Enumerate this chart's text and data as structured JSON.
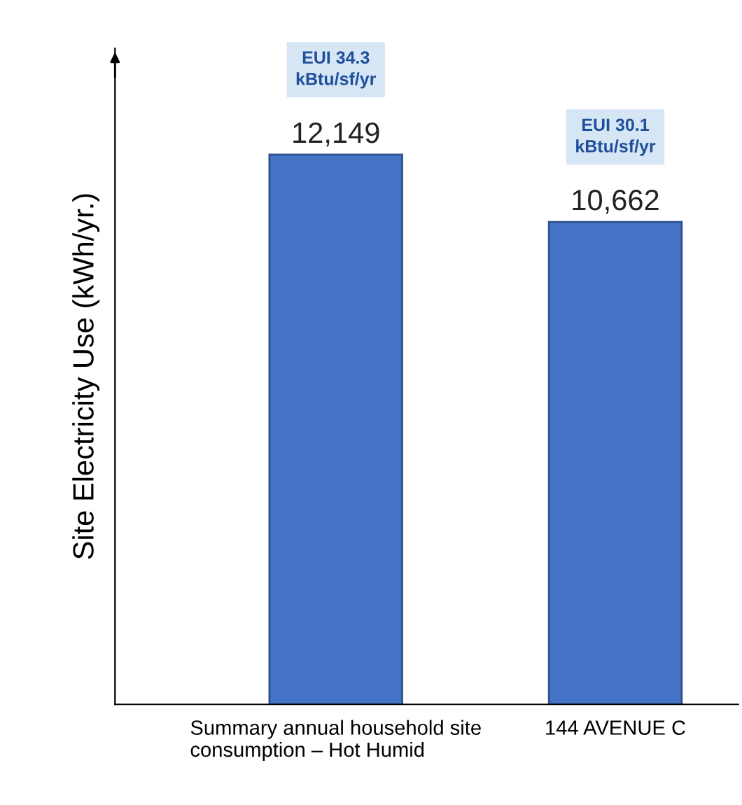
{
  "chart_data": {
    "type": "bar",
    "categories": [
      "Summary annual household site consumption – Hot Humid",
      "144 AVENUE C"
    ],
    "values": [
      12149,
      10662
    ],
    "value_labels": [
      "12,149",
      "10,662"
    ],
    "color": "#4472c4",
    "ylabel": "Site Electricity Use (kWh/yr.)",
    "ylim": [
      0,
      14500
    ],
    "tick_labels": "x",
    "grid": false,
    "legend": false,
    "annotations": [
      "EUI 34.3\nkBtu/sf/yr",
      "EUI 30.1\nkBtu/sf/yr"
    ]
  }
}
